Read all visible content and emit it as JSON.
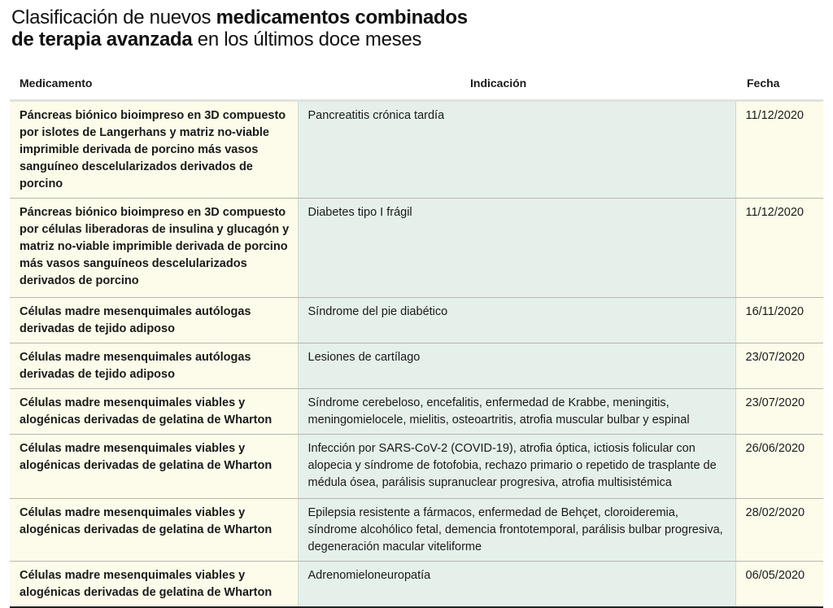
{
  "title": {
    "line1_normal": "Clasificación de nuevos ",
    "line1_bold": "medicamentos combinados",
    "line2_bold": "de terapia avanzada",
    "line2_normal": " en los últimos doce meses"
  },
  "headers": {
    "medicamento": "Medicamento",
    "indicacion": "Indicación",
    "fecha": "Fecha"
  },
  "rows": [
    {
      "medicamento": "Páncreas biónico bioimpreso en 3D compuesto por islotes de Langerhans y matriz no-viable imprimible derivada de porcino más vasos sanguíneo descelularizados derivados de porcino",
      "indicacion": "Pancreatitis crónica tardía",
      "fecha": "11/12/2020"
    },
    {
      "medicamento": "Páncreas biónico bioimpreso en 3D compuesto por células liberadoras de insulina y glucagón y matriz no-viable imprimible derivada de porcino más vasos sanguíneos descelularizados derivados de porcino",
      "indicacion": "Diabetes tipo I frágil",
      "fecha": "11/12/2020"
    },
    {
      "medicamento": "Células madre mesenquimales autólogas derivadas de tejido adiposo",
      "indicacion": "Síndrome del pie diabético",
      "fecha": "16/11/2020"
    },
    {
      "medicamento": "Células madre mesenquimales autólogas derivadas de tejido adiposo",
      "indicacion": "Lesiones de cartílago",
      "fecha": "23/07/2020"
    },
    {
      "medicamento": "Células madre mesenquimales viables y alogénicas derivadas de gelatina de Wharton",
      "indicacion": "Síndrome cerebeloso, encefalitis, enfermedad de Krabbe, meningitis, meningomielocele, mielitis, osteoartritis, atrofia muscular bulbar y espinal",
      "fecha": "23/07/2020"
    },
    {
      "medicamento": "Células madre mesenquimales viables y alogénicas derivadas de gelatina de Wharton",
      "indicacion": "Infección por SARS-CoV-2 (COVID-19), atrofia óptica, ictiosis folicular con alopecia y síndrome de fotofobia, rechazo primario o repetido de trasplante de médula ósea, parálisis supranuclear progresiva, atrofia multisistémica",
      "fecha": "26/06/2020"
    },
    {
      "medicamento": "Células madre mesenquimales viables y alogénicas derivadas de gelatina de Wharton",
      "indicacion": "Epilepsia resistente a fármacos, enfermedad de Behçet, cloroideremia, síndrome alcohólico fetal, demencia frontotemporal, parálisis bulbar progresiva, degeneración macular viteliforme",
      "fecha": "28/02/2020"
    },
    {
      "medicamento": "Células madre mesenquimales viables y alogénicas derivadas de gelatina de Wharton",
      "indicacion": "Adrenomieloneuropatía",
      "fecha": "06/05/2020"
    }
  ]
}
